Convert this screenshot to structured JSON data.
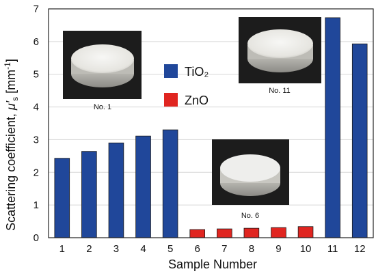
{
  "chart_data": {
    "type": "bar",
    "xlabel": "Sample Number",
    "ylabel_main": "Scattering coefficient, ",
    "ylabel_symbol": "μ′",
    "ylabel_sub": "s",
    "ylabel_unit": " [mm",
    "ylabel_unit_exp": "-1",
    "ylabel_close": "]",
    "ylim": [
      0,
      7
    ],
    "yticks": [
      "0",
      "1",
      "2",
      "3",
      "4",
      "5",
      "6",
      "7"
    ],
    "categories": [
      "1",
      "2",
      "3",
      "4",
      "5",
      "6",
      "7",
      "8",
      "9",
      "10",
      "11",
      "12"
    ],
    "series": [
      {
        "name": "TiO₂",
        "color": "#20479a",
        "values": [
          2.43,
          2.64,
          2.9,
          3.11,
          3.3,
          null,
          null,
          null,
          null,
          null,
          6.73,
          5.93
        ]
      },
      {
        "name": "ZnO",
        "color": "#e02520",
        "values": [
          null,
          null,
          null,
          null,
          null,
          0.25,
          0.27,
          0.29,
          0.31,
          0.34,
          null,
          null
        ]
      }
    ],
    "grid": true,
    "legend_position": "upper-middle",
    "inset_captions": [
      "No. 1",
      "No. 6",
      "No. 11"
    ]
  }
}
